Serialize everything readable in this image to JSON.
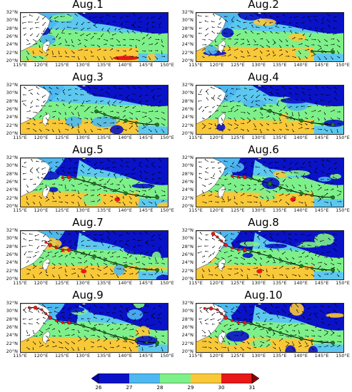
{
  "panels": [
    {
      "title": "Aug.1",
      "track": []
    },
    {
      "title": "Aug.2",
      "track": [
        [
          147.5,
          22.3
        ],
        [
          145,
          22.4
        ],
        [
          142.5,
          22.5
        ]
      ]
    },
    {
      "title": "Aug.3",
      "track": [
        [
          147.5,
          22.3
        ],
        [
          145,
          22.4
        ],
        [
          142.5,
          22.8
        ],
        [
          140,
          23.3
        ],
        [
          137.5,
          24.0
        ],
        [
          135,
          24.8
        ],
        [
          133,
          25.6
        ]
      ]
    },
    {
      "title": "Aug.4",
      "track": [
        [
          147.5,
          22.3
        ],
        [
          145,
          22.4
        ],
        [
          142.5,
          22.8
        ],
        [
          140,
          23.3
        ],
        [
          137.5,
          24.0
        ],
        [
          135,
          24.8
        ],
        [
          132.5,
          25.7
        ],
        [
          130.5,
          26.3
        ]
      ]
    },
    {
      "title": "Aug.5",
      "track": [
        [
          147.5,
          22.3
        ],
        [
          145,
          22.4
        ],
        [
          142.5,
          22.8
        ],
        [
          140,
          23.3
        ],
        [
          137.5,
          24.0
        ],
        [
          135,
          24.8
        ],
        [
          132.5,
          25.7
        ],
        [
          130,
          26.4
        ],
        [
          128,
          27.0
        ],
        [
          126.5,
          27.3
        ],
        [
          125,
          27.2
        ]
      ]
    },
    {
      "title": "Aug.6",
      "track": [
        [
          147.5,
          22.3
        ],
        [
          145,
          22.4
        ],
        [
          142.5,
          22.8
        ],
        [
          140,
          23.3
        ],
        [
          137.5,
          24.0
        ],
        [
          135,
          24.8
        ],
        [
          132.5,
          25.7
        ],
        [
          130,
          26.4
        ],
        [
          128,
          27.0
        ],
        [
          126.5,
          27.3
        ],
        [
          125,
          27.3
        ],
        [
          123.5,
          27.6
        ]
      ]
    },
    {
      "title": "Aug.7",
      "track": [
        [
          147.5,
          22.3
        ],
        [
          145,
          22.4
        ],
        [
          142.5,
          22.8
        ],
        [
          140,
          23.3
        ],
        [
          137.5,
          24.0
        ],
        [
          135,
          24.8
        ],
        [
          132.5,
          25.7
        ],
        [
          130,
          26.4
        ],
        [
          128,
          27.0
        ],
        [
          126.5,
          27.3
        ],
        [
          125,
          27.3
        ],
        [
          123.5,
          27.8
        ],
        [
          122,
          28.5
        ],
        [
          121,
          29.2
        ]
      ]
    },
    {
      "title": "Aug.8",
      "track": [
        [
          147.5,
          22.3
        ],
        [
          145,
          22.4
        ],
        [
          142.5,
          22.8
        ],
        [
          140,
          23.3
        ],
        [
          137.5,
          24.0
        ],
        [
          135,
          24.8
        ],
        [
          132.5,
          25.7
        ],
        [
          130,
          26.4
        ],
        [
          128,
          27.0
        ],
        [
          126.5,
          27.3
        ],
        [
          125,
          27.3
        ],
        [
          123.5,
          27.8
        ],
        [
          122,
          28.5
        ],
        [
          121,
          29.5
        ],
        [
          120,
          30.5
        ],
        [
          119,
          31.3
        ]
      ]
    },
    {
      "title": "Aug.9",
      "track": [
        [
          147.5,
          22.3
        ],
        [
          145,
          22.4
        ],
        [
          142.5,
          22.8
        ],
        [
          140,
          23.3
        ],
        [
          137.5,
          24.0
        ],
        [
          135,
          24.8
        ],
        [
          132.5,
          25.7
        ],
        [
          130,
          26.4
        ],
        [
          128,
          27.0
        ],
        [
          126.5,
          27.3
        ],
        [
          125,
          27.3
        ],
        [
          123.5,
          27.8
        ],
        [
          122,
          28.5
        ],
        [
          121,
          29.5
        ],
        [
          120,
          30.5
        ],
        [
          118.5,
          31.0
        ],
        [
          117,
          31.0
        ]
      ]
    },
    {
      "title": "Aug.10",
      "track": [
        [
          147.5,
          22.3
        ],
        [
          145,
          22.4
        ],
        [
          142.5,
          22.8
        ],
        [
          140,
          23.3
        ],
        [
          137.5,
          24.0
        ],
        [
          135,
          24.8
        ],
        [
          132.5,
          25.7
        ],
        [
          130,
          26.4
        ],
        [
          128,
          27.0
        ],
        [
          126.5,
          27.3
        ],
        [
          125,
          27.3
        ],
        [
          123.5,
          27.8
        ],
        [
          122,
          28.5
        ],
        [
          121,
          29.5
        ],
        [
          120,
          30.5
        ],
        [
          118.5,
          30.8
        ],
        [
          117,
          30.8
        ]
      ]
    }
  ],
  "axes": {
    "y_ticks": [
      "32°N",
      "30°N",
      "28°N",
      "26°N",
      "24°N",
      "22°N",
      "20°N"
    ],
    "x_ticks": [
      "115°E",
      "120°E",
      "125°E",
      "130°E",
      "135°E",
      "140°E",
      "145°E",
      "150°E"
    ],
    "lon_range": [
      115,
      150
    ],
    "lat_range": [
      20,
      32
    ]
  },
  "colorbar": {
    "ticks": [
      "26",
      "27",
      "28",
      "29",
      "30",
      "31"
    ],
    "colors": [
      "#0a12c8",
      "#4eb8f0",
      "#7ef08a",
      "#f8c838",
      "#e81818",
      "#8a0000"
    ]
  }
}
